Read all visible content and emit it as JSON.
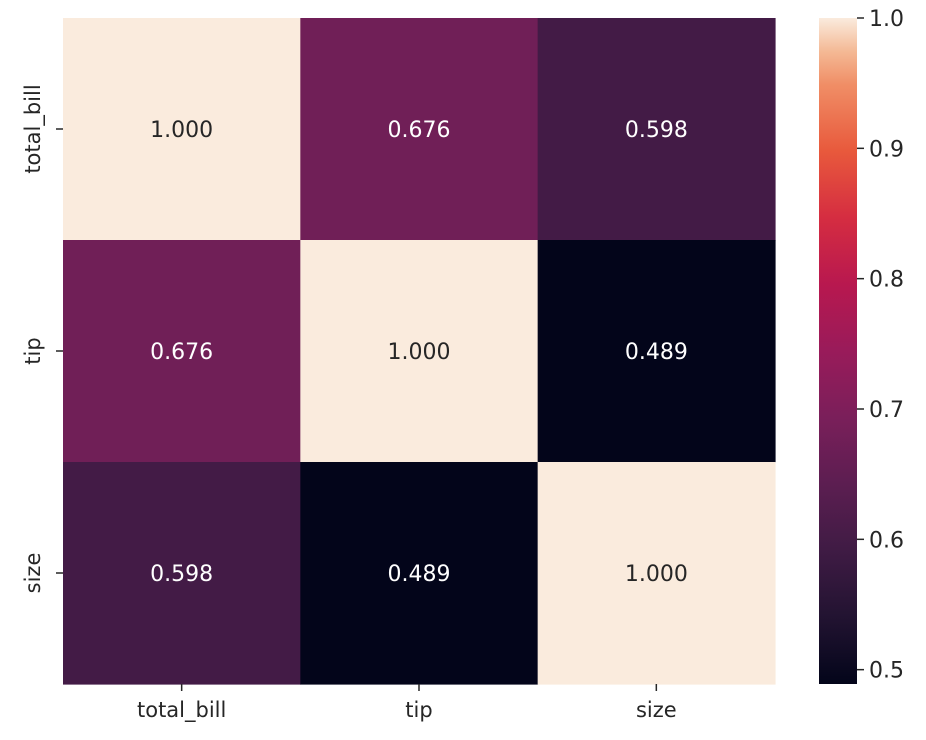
{
  "chart_data": {
    "type": "heatmap",
    "title": "",
    "xlabel": "",
    "ylabel": "",
    "x_categories": [
      "total_bill",
      "tip",
      "size"
    ],
    "y_categories": [
      "total_bill",
      "tip",
      "size"
    ],
    "values": [
      [
        1.0,
        0.676,
        0.598
      ],
      [
        0.676,
        1.0,
        0.489
      ],
      [
        0.598,
        0.489,
        1.0
      ]
    ],
    "cell_labels": [
      [
        "1.000",
        "0.676",
        "0.598"
      ],
      [
        "0.676",
        "1.000",
        "0.489"
      ],
      [
        "0.598",
        "0.489",
        "1.000"
      ]
    ],
    "colormap": "rocket",
    "colorbar": {
      "range": [
        0.489,
        1.0
      ],
      "ticks": [
        0.5,
        0.6,
        0.7,
        0.8,
        0.9,
        1.0
      ],
      "tick_labels": [
        "0.5",
        "0.6",
        "0.7",
        "0.8",
        "0.9",
        "1.0"
      ]
    },
    "grid": false
  }
}
